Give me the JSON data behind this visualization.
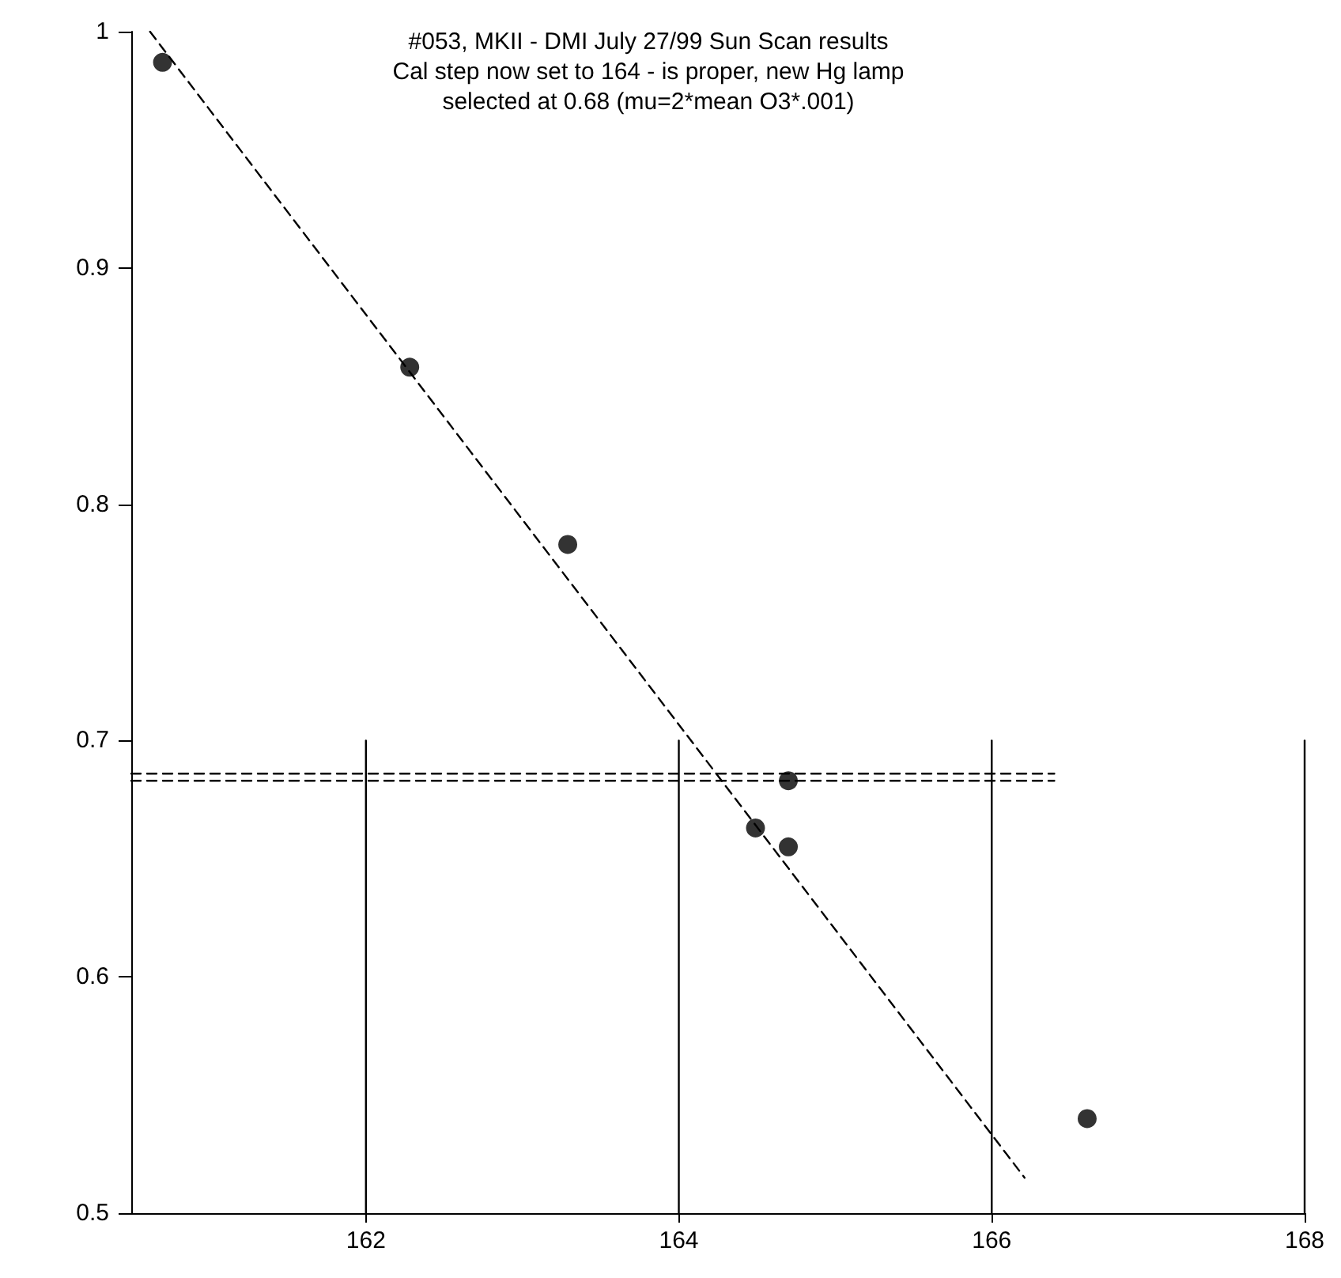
{
  "chart_data": {
    "type": "scatter",
    "title": "#053, MKII - DMI July 27/99 Sun Scan results\nCal step now set to 164 - is proper, new Hg lamp\nselected at 0.68 (mu=2*mean O3*.001)",
    "xlim": [
      160.5,
      168
    ],
    "xticks": [
      162,
      164,
      166,
      168
    ],
    "ylim": [
      0.5,
      1
    ],
    "yticks": [
      0.5,
      0.6,
      0.7,
      0.8,
      0.9,
      1
    ],
    "grid": false,
    "series": [
      {
        "color": "#000000",
        "marker": "circle",
        "x": [
          160.7,
          162.28,
          163.29,
          164.49,
          164.7,
          164.7,
          166.61
        ],
        "values": [
          0.987,
          0.858,
          0.783,
          0.663,
          0.683,
          0.655,
          0.54
        ]
      },
      {
        "type": "line",
        "color": "#000000",
        "marker": "none",
        "line_style": "dashed",
        "x": [
          160.62,
          166.21
        ],
        "values": [
          1.0,
          0.515
        ]
      },
      {
        "type": "line",
        "color": "#000000",
        "marker": "none",
        "line_style": "dashed",
        "x": [
          160.5,
          166.4
        ],
        "values": [
          0.686,
          0.686
        ]
      },
      {
        "type": "line",
        "color": "#000000",
        "marker": "none",
        "line_style": "dashed",
        "x": [
          160.5,
          166.4
        ],
        "values": [
          0.683,
          0.683
        ]
      },
      {
        "type": "line",
        "color": "#000000",
        "marker": "none",
        "line_style": "solid",
        "x": [
          162,
          162
        ],
        "values": [
          0.5,
          0.7
        ]
      },
      {
        "type": "line",
        "color": "#000000",
        "marker": "none",
        "line_style": "solid",
        "x": [
          164,
          164
        ],
        "values": [
          0.5,
          0.7
        ]
      },
      {
        "type": "line",
        "color": "#000000",
        "marker": "none",
        "line_style": "solid",
        "x": [
          166,
          166
        ],
        "values": [
          0.5,
          0.7
        ]
      },
      {
        "type": "line",
        "color": "#000000",
        "marker": "none",
        "line_style": "solid",
        "x": [
          168,
          168
        ],
        "values": [
          0.5,
          0.7
        ]
      }
    ]
  }
}
